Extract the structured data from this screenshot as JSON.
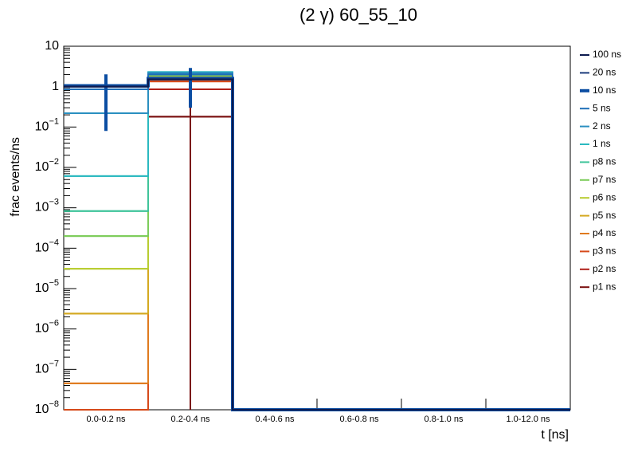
{
  "chart_data": {
    "type": "step",
    "title": "(2 γ) 60_55_10",
    "y_label": "frac events/ns",
    "x_label": "t [ns]",
    "categories": [
      "0.0-0.2 ns",
      "0.2-0.4 ns",
      "0.4-0.6 ns",
      "0.6-0.8 ns",
      "0.8-1.0 ns",
      "1.0-12.0 ns"
    ],
    "log_y": true,
    "ylim": [
      1e-08,
      10
    ],
    "yticks": [
      {
        "value": 1e-08,
        "label": "10−8"
      },
      {
        "value": 1e-07,
        "label": "10−7"
      },
      {
        "value": 1e-06,
        "label": "10−6"
      },
      {
        "value": 1e-05,
        "label": "10−5"
      },
      {
        "value": 0.0001,
        "label": "10−4"
      },
      {
        "value": 0.001,
        "label": "10−3"
      },
      {
        "value": 0.01,
        "label": "10−2"
      },
      {
        "value": 0.1,
        "label": "10−1"
      },
      1,
      10
    ],
    "legend": "right",
    "series": [
      {
        "name": "100 ns",
        "color": "#0d1b4f",
        "line_width": 2,
        "values": [
          1.0,
          1.5,
          0,
          0,
          0,
          0
        ]
      },
      {
        "name": "20 ns",
        "color": "#1a3a7a",
        "line_width": 2,
        "values": [
          1.0,
          1.55,
          0,
          0,
          0,
          0
        ]
      },
      {
        "name": "10 ns",
        "color": "#0b4da2",
        "line_width": 4,
        "values": [
          1.05,
          1.6,
          0,
          0,
          0,
          0
        ],
        "errors": [
          0.97,
          1.3,
          0,
          0,
          0,
          0
        ]
      },
      {
        "name": "5 ns",
        "color": "#1f6fb8",
        "line_width": 2,
        "values": [
          0.86,
          2.0,
          0,
          0,
          0,
          0
        ]
      },
      {
        "name": "2 ns",
        "color": "#2a8fc0",
        "line_width": 2,
        "values": [
          0.22,
          2.2,
          0,
          0,
          0,
          0
        ]
      },
      {
        "name": "1 ns",
        "color": "#2bb9c0",
        "line_width": 2,
        "values": [
          0.0061,
          2.3,
          0,
          0,
          0,
          0
        ]
      },
      {
        "name": "p8 ns",
        "color": "#3fc49a",
        "line_width": 2,
        "values": [
          0.00083,
          2.1,
          0,
          0,
          0,
          0
        ]
      },
      {
        "name": "p7 ns",
        "color": "#7ccc5a",
        "line_width": 2,
        "values": [
          0.0002,
          1.9,
          0,
          0,
          0,
          0
        ]
      },
      {
        "name": "p6 ns",
        "color": "#b8cc30",
        "line_width": 2,
        "values": [
          3.1e-05,
          1.85,
          0,
          0,
          0,
          0
        ]
      },
      {
        "name": "p5 ns",
        "color": "#d4a920",
        "line_width": 2,
        "values": [
          2.4e-06,
          1.8,
          0,
          0,
          0,
          0
        ]
      },
      {
        "name": "p4 ns",
        "color": "#e07a1e",
        "line_width": 2,
        "values": [
          4.5e-08,
          1.55,
          0,
          0,
          0,
          0
        ]
      },
      {
        "name": "p3 ns",
        "color": "#d64a1a",
        "line_width": 2,
        "values": [
          0,
          1.35,
          0,
          0,
          0,
          0
        ]
      },
      {
        "name": "p2 ns",
        "color": "#b0201a",
        "line_width": 2,
        "values": [
          0,
          0.86,
          0,
          0,
          0,
          0
        ]
      },
      {
        "name": "p1 ns",
        "color": "#7a0f0f",
        "line_width": 2,
        "values": [
          0,
          0.18,
          0,
          0,
          0,
          0
        ],
        "errors": [
          0,
          0.18,
          0,
          0,
          0,
          0
        ]
      }
    ]
  }
}
